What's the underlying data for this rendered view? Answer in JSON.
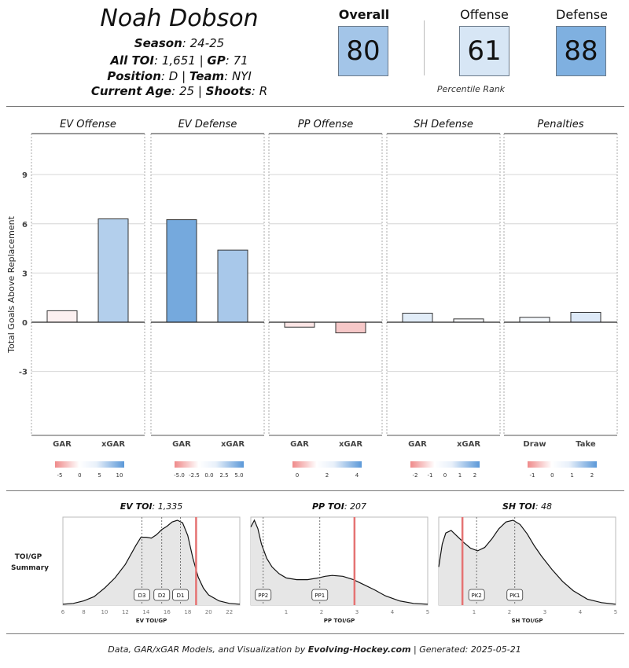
{
  "header": {
    "player_name": "Noah Dobson",
    "season_label": "Season",
    "season_value": "24-25",
    "toi_label": "All TOI",
    "toi_value": "1,651",
    "gp_label": "GP",
    "gp_value": "71",
    "position_label": "Position",
    "position_value": "D",
    "team_label": "Team",
    "team_value": "NYI",
    "age_label": "Current Age",
    "age_value": "25",
    "shoots_label": "Shoots",
    "shoots_value": "R",
    "separator": "|"
  },
  "ranks": {
    "overall_label": "Overall",
    "overall_value": "80",
    "overall_color": "#a3c5e8",
    "offense_label": "Offense",
    "offense_value": "61",
    "offense_color": "#d7e6f5",
    "defense_label": "Defense",
    "defense_value": "88",
    "defense_color": "#7fb0e0",
    "caption": "Percentile Rank"
  },
  "chart_data": [
    {
      "type": "bar",
      "ylabel": "Total Goals Above Replacement",
      "ylim": [
        -6.9,
        11.5
      ],
      "yticks": [
        -3,
        0,
        3,
        6,
        9
      ],
      "grid": true,
      "panels": [
        {
          "title": "EV Offense",
          "categories": [
            "GAR",
            "xGAR"
          ],
          "values": [
            0.7,
            6.3
          ],
          "colors": [
            "#fcf0f0",
            "#b3cfec"
          ],
          "legend_ticks": [
            "-5",
            "0",
            "5",
            "10"
          ]
        },
        {
          "title": "EV Defense",
          "categories": [
            "GAR",
            "xGAR"
          ],
          "values": [
            6.25,
            4.4
          ],
          "colors": [
            "#75a9dd",
            "#a8c8ea"
          ],
          "legend_ticks": [
            "-5.0",
            "-2.5",
            "0.0",
            "2.5",
            "5.0"
          ]
        },
        {
          "title": "PP Offense",
          "categories": [
            "GAR",
            "xGAR"
          ],
          "values": [
            -0.3,
            -0.65
          ],
          "colors": [
            "#fbe5e5",
            "#f6c8c8"
          ],
          "legend_ticks": [
            "0",
            "2",
            "4"
          ]
        },
        {
          "title": "SH Defense",
          "categories": [
            "GAR",
            "xGAR"
          ],
          "values": [
            0.55,
            0.2
          ],
          "colors": [
            "#e2edf8",
            "#f8fafd"
          ],
          "legend_ticks": [
            "-2",
            "-1",
            "0",
            "1",
            "2"
          ]
        },
        {
          "title": "Penalties",
          "categories": [
            "Draw",
            "Take"
          ],
          "values": [
            0.3,
            0.6
          ],
          "colors": [
            "#f4f8fc",
            "#dde9f7"
          ],
          "legend_ticks": [
            "-1",
            "0",
            "1",
            "2"
          ]
        }
      ]
    },
    {
      "type": "area",
      "side_label_line1": "TOI/GP",
      "side_label_line2": "Summary",
      "panels": [
        {
          "title_label": "EV TOI",
          "title_value": "1,335",
          "xlabel": "EV TOI/GP",
          "xlim": [
            6,
            23
          ],
          "xticks": [
            6,
            8,
            10,
            12,
            14,
            16,
            18,
            20,
            22
          ],
          "density_x": [
            6,
            7,
            8,
            9,
            10,
            11,
            12,
            13,
            13.5,
            14,
            14.5,
            15,
            15.5,
            16,
            16.5,
            17,
            17.5,
            18,
            18.5,
            19,
            19.5,
            20,
            21,
            22,
            23
          ],
          "density_y": [
            0.01,
            0.02,
            0.05,
            0.1,
            0.2,
            0.32,
            0.48,
            0.7,
            0.8,
            0.8,
            0.79,
            0.83,
            0.89,
            0.93,
            0.98,
            1.0,
            0.97,
            0.82,
            0.55,
            0.33,
            0.2,
            0.12,
            0.05,
            0.02,
            0.01
          ],
          "refs": [
            {
              "label": "D3",
              "x": 13.6
            },
            {
              "label": "D2",
              "x": 15.5
            },
            {
              "label": "D1",
              "x": 17.3
            }
          ],
          "player_value": 18.8
        },
        {
          "title_label": "PP TOI",
          "title_value": "207",
          "xlabel": "PP TOI/GP",
          "xlim": [
            0,
            5
          ],
          "xticks": [
            1,
            2,
            3,
            4,
            5
          ],
          "density_x": [
            0,
            0.1,
            0.2,
            0.3,
            0.45,
            0.6,
            0.8,
            1.0,
            1.3,
            1.6,
            1.9,
            2.1,
            2.3,
            2.6,
            2.9,
            3.2,
            3.5,
            3.8,
            4.2,
            4.6,
            5.0
          ],
          "density_y": [
            0.92,
            1.0,
            0.9,
            0.72,
            0.55,
            0.45,
            0.37,
            0.32,
            0.3,
            0.3,
            0.32,
            0.34,
            0.35,
            0.34,
            0.3,
            0.24,
            0.18,
            0.11,
            0.05,
            0.02,
            0.01
          ],
          "refs": [
            {
              "label": "PP2",
              "x": 0.35
            },
            {
              "label": "PP1",
              "x": 1.95
            }
          ],
          "player_value": 2.93
        },
        {
          "title_label": "SH TOI",
          "title_value": "48",
          "xlabel": "SH TOI/GP",
          "xlim": [
            0,
            5
          ],
          "xticks": [
            1,
            2,
            3,
            4,
            5
          ],
          "density_x": [
            0,
            0.1,
            0.2,
            0.35,
            0.5,
            0.7,
            0.9,
            1.1,
            1.3,
            1.5,
            1.7,
            1.9,
            2.1,
            2.3,
            2.5,
            2.7,
            2.9,
            3.2,
            3.5,
            3.8,
            4.2,
            4.6,
            5.0
          ],
          "density_y": [
            0.45,
            0.72,
            0.85,
            0.88,
            0.82,
            0.74,
            0.67,
            0.64,
            0.68,
            0.78,
            0.9,
            0.98,
            1.0,
            0.95,
            0.84,
            0.7,
            0.58,
            0.42,
            0.28,
            0.17,
            0.07,
            0.03,
            0.01
          ],
          "refs": [
            {
              "label": "PK2",
              "x": 1.07
            },
            {
              "label": "PK1",
              "x": 2.15
            }
          ],
          "player_value": 0.67
        }
      ]
    }
  ],
  "footer": {
    "prefix": "Data, GAR/xGAR Models, and Visualization by ",
    "brand": "Evolving-Hockey.com",
    "separator": " | ",
    "generated": "Generated: 2025-05-21"
  }
}
